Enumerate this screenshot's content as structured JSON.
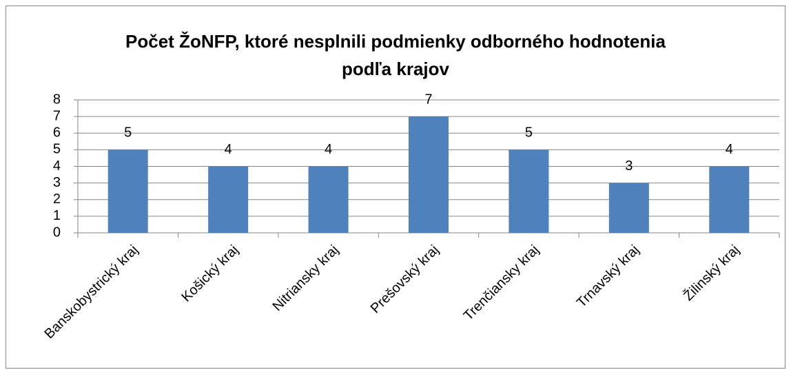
{
  "chart_data": {
    "type": "bar",
    "title": "Počet ŽoNFP, ktoré nesplnili podmienky odborného hodnotenia podľa krajov",
    "categories": [
      "Banskobystrický kraj",
      "Košický kraj",
      "Nitriansky kraj",
      "Prešovský kraj",
      "Trenčiansky kraj",
      "Trnavský kraj",
      "Žilinský kraj"
    ],
    "values": [
      5,
      4,
      4,
      7,
      5,
      3,
      4
    ],
    "color": "#4f81bd",
    "ylim": [
      0,
      8
    ],
    "yticks": [
      0,
      1,
      2,
      3,
      4,
      5,
      6,
      7,
      8
    ],
    "grid": true
  }
}
